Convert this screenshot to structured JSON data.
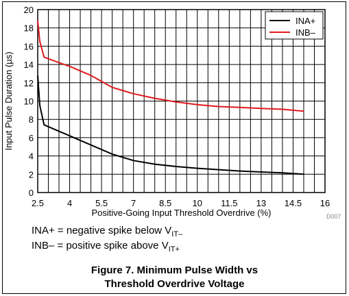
{
  "chart_data": {
    "type": "line",
    "xlabel": "Positive-Going Input Threshold Overdrive (%)",
    "ylabel": "Input Pulse Duration (µs)",
    "xlim": [
      2.5,
      16
    ],
    "ylim": [
      0,
      20
    ],
    "xticks": [
      "2.5",
      "4",
      "5.5",
      "7",
      "8.5",
      "10",
      "11.5",
      "13",
      "14.5",
      "16"
    ],
    "yticks": [
      "0",
      "2",
      "4",
      "6",
      "8",
      "10",
      "12",
      "14",
      "16",
      "18",
      "20"
    ],
    "xtick_values": [
      2.5,
      4,
      5.5,
      7,
      8.5,
      10,
      11.5,
      13,
      14.5,
      16
    ],
    "ytick_values": [
      0,
      2,
      4,
      6,
      8,
      10,
      12,
      14,
      16,
      18,
      20
    ],
    "minor_x_per_major": 3,
    "grid": true,
    "legend_position": "top-right",
    "series": [
      {
        "name": "INA+",
        "color": "#000000",
        "x": [
          2.5,
          2.6,
          2.8,
          3.5,
          4,
          5,
          6,
          7,
          8,
          9,
          10,
          11,
          12,
          13,
          14,
          15
        ],
        "y": [
          12.8,
          9.5,
          7.4,
          6.7,
          6.2,
          5.2,
          4.2,
          3.5,
          3.1,
          2.85,
          2.65,
          2.5,
          2.35,
          2.25,
          2.15,
          2.0
        ]
      },
      {
        "name": "INB–",
        "color": "#e0191c",
        "x": [
          2.5,
          2.6,
          2.8,
          3.5,
          4,
          5,
          6,
          7,
          8,
          9,
          10,
          11,
          12,
          13,
          14,
          15
        ],
        "y": [
          18.8,
          16.5,
          14.8,
          14.2,
          13.8,
          12.8,
          11.5,
          10.8,
          10.3,
          9.9,
          9.6,
          9.4,
          9.3,
          9.2,
          9.1,
          8.9
        ]
      }
    ],
    "watermark": "D007"
  },
  "notes": {
    "line1_prefix": "INA+ = negative spike below V",
    "line1_sub": "IT–",
    "line2_prefix": "INB– = positive spike above V",
    "line2_sub": "IT+"
  },
  "caption": {
    "line1": "Figure 7. Minimum Pulse Width vs",
    "line2": "Threshold Overdrive Voltage"
  }
}
